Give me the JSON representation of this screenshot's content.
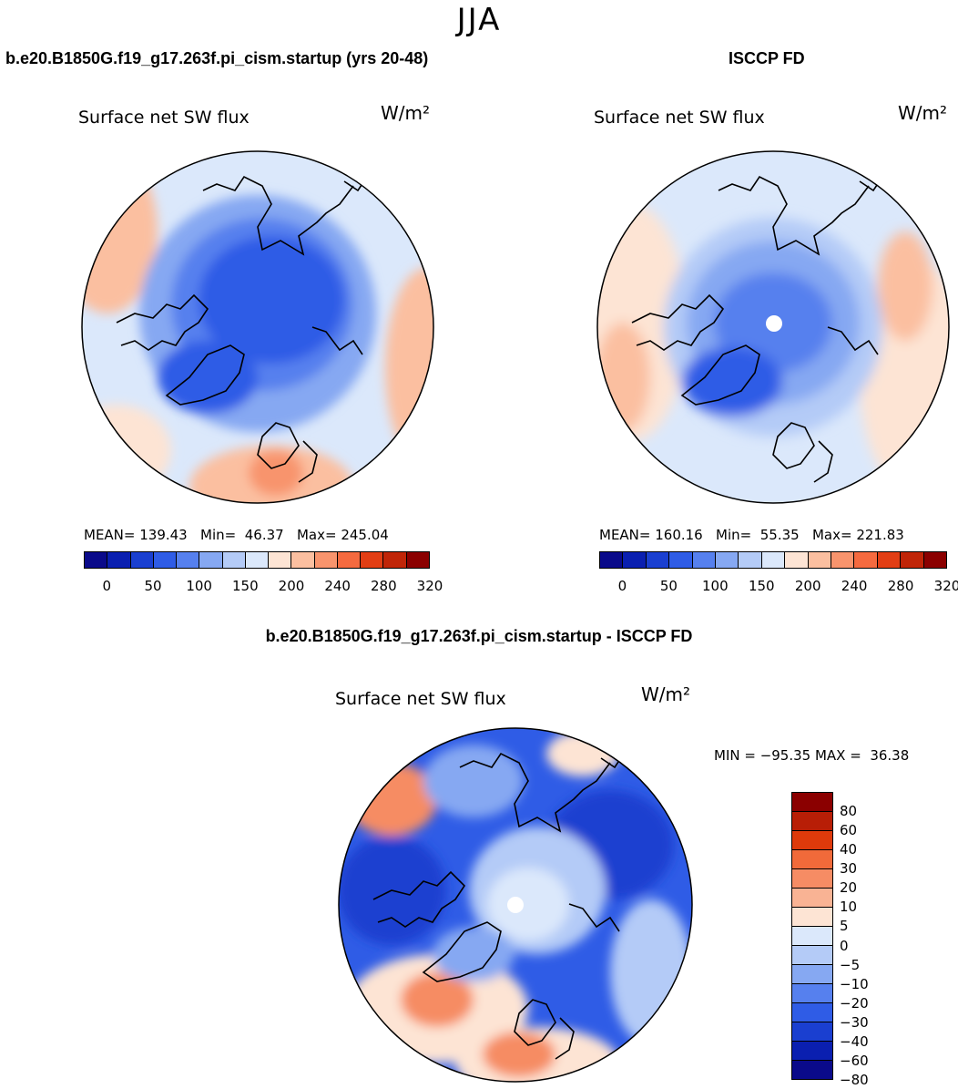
{
  "season": "JJA",
  "panels": {
    "model": {
      "case": "b.e20.B1850G.f19_g17.263f.pi_cism.startup (yrs 20-48)",
      "subtitle": "Surface net SW flux",
      "units": "W/m²",
      "stats": "MEAN= 139.43   Min=  46.37   Max= 245.04"
    },
    "obs": {
      "case": "ISCCP FD",
      "subtitle": "Surface net SW flux",
      "units": "W/m²",
      "stats": "MEAN= 160.16   Min=  55.35   Max= 221.83"
    },
    "diff": {
      "case": "b.e20.B1850G.f19_g17.263f.pi_cism.startup - ISCCP FD",
      "subtitle": "Surface net SW flux",
      "units": "W/m²",
      "stats": "MIN = −95.35 MAX =  36.38"
    }
  },
  "colorbar_abs": {
    "colors": [
      "#0a0a8a",
      "#0a1fb0",
      "#1a3fd0",
      "#2f5ce6",
      "#5680ee",
      "#86a8f2",
      "#b4cbf7",
      "#dbe8fb",
      "#fde4d4",
      "#fbbfa0",
      "#f8946d",
      "#f56a3f",
      "#e23e14",
      "#c02508",
      "#8b0000"
    ],
    "tick_labels": [
      "0",
      "50",
      "100",
      "150",
      "200",
      "240",
      "280",
      "320"
    ]
  },
  "colorbar_diff": {
    "colors": [
      "#8b0000",
      "#b81e06",
      "#de3a0b",
      "#f16a3a",
      "#f68c64",
      "#f9b394",
      "#fde4d4",
      "#dbe8fb",
      "#b4cbf7",
      "#86a8f2",
      "#5680ee",
      "#2f5ce6",
      "#1a3fd0",
      "#0a1fb0",
      "#0a0a8a"
    ],
    "labels": [
      "80",
      "60",
      "40",
      "30",
      "20",
      "10",
      "5",
      "0",
      "−5",
      "−10",
      "−20",
      "−30",
      "−40",
      "−60",
      "−80"
    ]
  }
}
